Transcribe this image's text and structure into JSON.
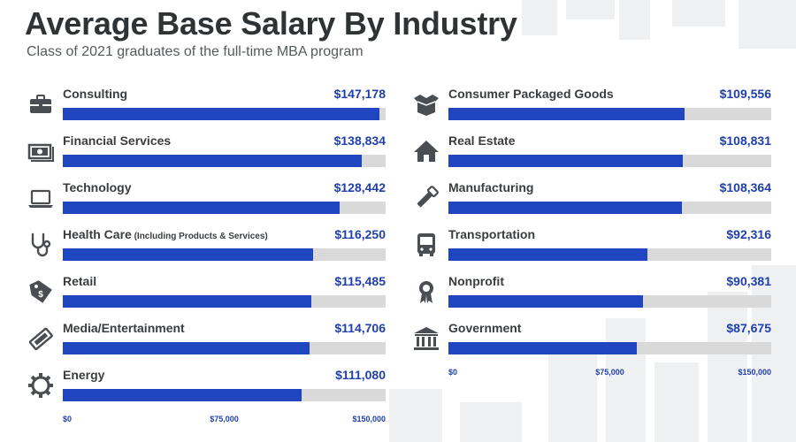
{
  "title": "Average Base Salary By Industry",
  "subtitle": "Class of 2021 graduates of the full-time MBA program",
  "colors": {
    "bar": "#1f45c0",
    "track": "#d9d9d9",
    "value_text": "#1f3fae",
    "title_text": "#303335"
  },
  "chart_data": {
    "type": "bar",
    "orientation": "horizontal",
    "title": "Average Base Salary By Industry",
    "subtitle": "Class of 2021 graduates of the full-time MBA program",
    "xlim": [
      0,
      150000
    ],
    "ticks": [
      "$0",
      "$75,000",
      "$150,000"
    ],
    "grid": false,
    "columns": [
      {
        "items": [
          {
            "name": "Consulting",
            "sub": "",
            "value": 147178,
            "label": "$147,178",
            "icon": "briefcase-icon"
          },
          {
            "name": "Financial Services",
            "sub": "",
            "value": 138834,
            "label": "$138,834",
            "icon": "money-icon"
          },
          {
            "name": "Technology",
            "sub": "",
            "value": 128442,
            "label": "$128,442",
            "icon": "laptop-icon"
          },
          {
            "name": "Health Care",
            "sub": "(Including Products & Services)",
            "value": 116250,
            "label": "$116,250",
            "icon": "stethoscope-icon"
          },
          {
            "name": "Retail",
            "sub": "",
            "value": 115485,
            "label": "$115,485",
            "icon": "price-tag-icon"
          },
          {
            "name": "Media/Entertainment",
            "sub": "",
            "value": 114706,
            "label": "$114,706",
            "icon": "ticket-icon"
          },
          {
            "name": "Energy",
            "sub": "",
            "value": 111080,
            "label": "$111,080",
            "icon": "gear-icon"
          }
        ]
      },
      {
        "items": [
          {
            "name": "Consumer Packaged Goods",
            "sub": "",
            "value": 109556,
            "label": "$109,556",
            "icon": "open-box-icon"
          },
          {
            "name": "Real Estate",
            "sub": "",
            "value": 108831,
            "label": "$108,831",
            "icon": "house-icon"
          },
          {
            "name": "Manufacturing",
            "sub": "",
            "value": 108364,
            "label": "$108,364",
            "icon": "saw-icon"
          },
          {
            "name": "Transportation",
            "sub": "",
            "value": 92316,
            "label": "$92,316",
            "icon": "bus-icon"
          },
          {
            "name": "Nonprofit",
            "sub": "",
            "value": 90381,
            "label": "$90,381",
            "icon": "award-ribbon-icon"
          },
          {
            "name": "Government",
            "sub": "",
            "value": 87675,
            "label": "$87,675",
            "icon": "government-building-icon"
          }
        ]
      }
    ]
  }
}
